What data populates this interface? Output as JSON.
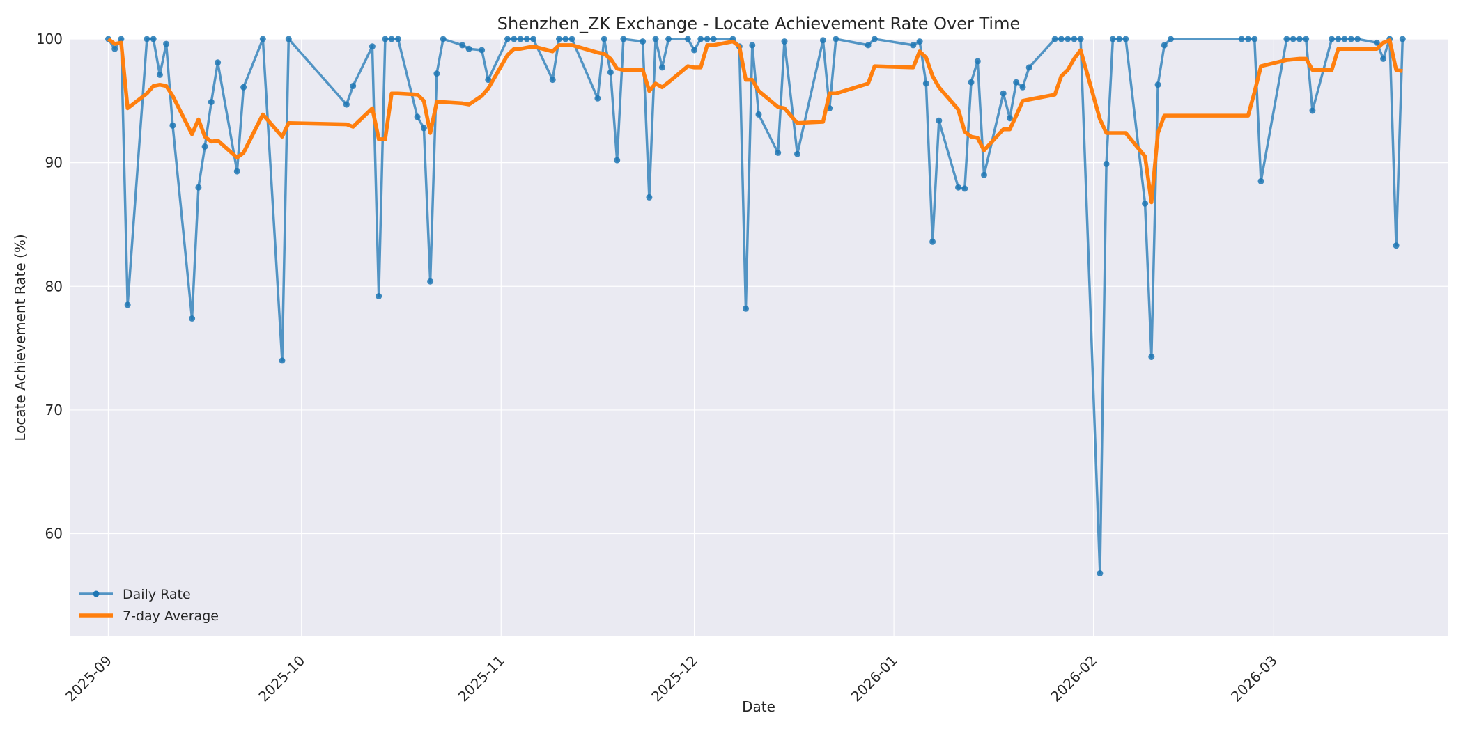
{
  "chart_data": {
    "type": "line",
    "title": "Shenzhen_ZK Exchange - Locate Achievement Rate Over Time",
    "xlabel": "Date",
    "ylabel": "Locate Achievement Rate (%)",
    "xlim": [
      "2025-08-26",
      "2026-03-28"
    ],
    "ylim": [
      51.7,
      100
    ],
    "xticks": [
      "2025-09-01",
      "2025-10-01",
      "2025-11-01",
      "2025-12-01",
      "2026-01-01",
      "2026-02-01",
      "2026-03-01"
    ],
    "xtick_labels": [
      "2025-09",
      "2025-10",
      "2025-11",
      "2025-12",
      "2026-01",
      "2026-02",
      "2026-03"
    ],
    "yticks": [
      60,
      70,
      80,
      90,
      100
    ],
    "ytick_labels": [
      "60",
      "70",
      "80",
      "90",
      "100"
    ],
    "grid": true,
    "legend_position": "lower-left",
    "series": [
      {
        "name": "Daily Rate",
        "color": "#1f77b4",
        "marker": "circle",
        "points": [
          [
            "2025-09-01",
            100
          ],
          [
            "2025-09-02",
            99.2
          ],
          [
            "2025-09-03",
            100
          ],
          [
            "2025-09-04",
            78.5
          ],
          [
            "2025-09-07",
            100
          ],
          [
            "2025-09-08",
            100
          ],
          [
            "2025-09-09",
            97.1
          ],
          [
            "2025-09-10",
            99.6
          ],
          [
            "2025-09-11",
            93
          ],
          [
            "2025-09-14",
            77.4
          ],
          [
            "2025-09-15",
            88
          ],
          [
            "2025-09-16",
            91.3
          ],
          [
            "2025-09-17",
            94.9
          ],
          [
            "2025-09-18",
            98.1
          ],
          [
            "2025-09-21",
            89.3
          ],
          [
            "2025-09-22",
            96.1
          ],
          [
            "2025-09-25",
            100
          ],
          [
            "2025-09-28",
            74
          ],
          [
            "2025-09-29",
            100
          ],
          [
            "2025-10-08",
            94.7
          ],
          [
            "2025-10-09",
            96.2
          ],
          [
            "2025-10-12",
            99.4
          ],
          [
            "2025-10-13",
            79.2
          ],
          [
            "2025-10-14",
            100
          ],
          [
            "2025-10-15",
            100
          ],
          [
            "2025-10-16",
            100
          ],
          [
            "2025-10-19",
            93.7
          ],
          [
            "2025-10-20",
            92.8
          ],
          [
            "2025-10-21",
            80.4
          ],
          [
            "2025-10-22",
            97.2
          ],
          [
            "2025-10-23",
            100
          ],
          [
            "2025-10-26",
            99.5
          ],
          [
            "2025-10-27",
            99.2
          ],
          [
            "2025-10-29",
            99.1
          ],
          [
            "2025-10-30",
            96.7
          ],
          [
            "2025-11-02",
            100
          ],
          [
            "2025-11-03",
            100
          ],
          [
            "2025-11-04",
            100
          ],
          [
            "2025-11-05",
            100
          ],
          [
            "2025-11-06",
            100
          ],
          [
            "2025-11-09",
            96.7
          ],
          [
            "2025-11-10",
            100
          ],
          [
            "2025-11-11",
            100
          ],
          [
            "2025-11-12",
            100
          ],
          [
            "2025-11-16",
            95.2
          ],
          [
            "2025-11-17",
            100
          ],
          [
            "2025-11-18",
            97.3
          ],
          [
            "2025-11-19",
            90.2
          ],
          [
            "2025-11-20",
            100
          ],
          [
            "2025-11-23",
            99.8
          ],
          [
            "2025-11-24",
            87.2
          ],
          [
            "2025-11-25",
            100
          ],
          [
            "2025-11-26",
            97.7
          ],
          [
            "2025-11-27",
            100
          ],
          [
            "2025-11-30",
            100
          ],
          [
            "2025-12-01",
            99.1
          ],
          [
            "2025-12-02",
            100
          ],
          [
            "2025-12-03",
            100
          ],
          [
            "2025-12-04",
            100
          ],
          [
            "2025-12-07",
            100
          ],
          [
            "2025-12-08",
            99.4
          ],
          [
            "2025-12-09",
            78.2
          ],
          [
            "2025-12-10",
            99.5
          ],
          [
            "2025-12-11",
            93.9
          ],
          [
            "2025-12-14",
            90.8
          ],
          [
            "2025-12-15",
            99.8
          ],
          [
            "2025-12-17",
            90.7
          ],
          [
            "2025-12-21",
            99.9
          ],
          [
            "2025-12-22",
            94.4
          ],
          [
            "2025-12-23",
            100
          ],
          [
            "2025-12-28",
            99.5
          ],
          [
            "2025-12-29",
            100
          ],
          [
            "2026-01-04",
            99.5
          ],
          [
            "2026-01-05",
            99.8
          ],
          [
            "2026-01-06",
            96.4
          ],
          [
            "2026-01-07",
            83.6
          ],
          [
            "2026-01-08",
            93.4
          ],
          [
            "2026-01-11",
            88
          ],
          [
            "2026-01-12",
            87.9
          ],
          [
            "2026-01-13",
            96.5
          ],
          [
            "2026-01-14",
            98.2
          ],
          [
            "2026-01-15",
            89
          ],
          [
            "2026-01-18",
            95.6
          ],
          [
            "2026-01-19",
            93.6
          ],
          [
            "2026-01-20",
            96.5
          ],
          [
            "2026-01-21",
            96.1
          ],
          [
            "2026-01-22",
            97.7
          ],
          [
            "2026-01-26",
            100
          ],
          [
            "2026-01-27",
            100
          ],
          [
            "2026-01-28",
            100
          ],
          [
            "2026-01-29",
            100
          ],
          [
            "2026-01-30",
            100
          ],
          [
            "2026-02-02",
            56.8
          ],
          [
            "2026-02-03",
            89.9
          ],
          [
            "2026-02-04",
            100
          ],
          [
            "2026-02-05",
            100
          ],
          [
            "2026-02-06",
            100
          ],
          [
            "2026-02-09",
            86.7
          ],
          [
            "2026-02-10",
            74.3
          ],
          [
            "2026-02-11",
            96.3
          ],
          [
            "2026-02-12",
            99.5
          ],
          [
            "2026-02-13",
            100
          ],
          [
            "2026-02-24",
            100
          ],
          [
            "2026-02-25",
            100
          ],
          [
            "2026-02-26",
            100
          ],
          [
            "2026-02-27",
            88.5
          ],
          [
            "2026-03-03",
            100
          ],
          [
            "2026-03-04",
            100
          ],
          [
            "2026-03-05",
            100
          ],
          [
            "2026-03-06",
            100
          ],
          [
            "2026-03-07",
            94.2
          ],
          [
            "2026-03-10",
            100
          ],
          [
            "2026-03-11",
            100
          ],
          [
            "2026-03-12",
            100
          ],
          [
            "2026-03-13",
            100
          ],
          [
            "2026-03-14",
            100
          ],
          [
            "2026-03-17",
            99.7
          ],
          [
            "2026-03-18",
            98.4
          ],
          [
            "2026-03-19",
            100
          ],
          [
            "2026-03-20",
            83.3
          ],
          [
            "2026-03-21",
            100
          ]
        ]
      },
      {
        "name": "7-day Average",
        "color": "#ff7f0e",
        "marker": "none",
        "points": [
          [
            "2025-09-01",
            100
          ],
          [
            "2025-09-02",
            99.6
          ],
          [
            "2025-09-03",
            99.7
          ],
          [
            "2025-09-04",
            94.4
          ],
          [
            "2025-09-07",
            95.6
          ],
          [
            "2025-09-08",
            96.2
          ],
          [
            "2025-09-09",
            96.3
          ],
          [
            "2025-09-10",
            96.2
          ],
          [
            "2025-09-11",
            95.4
          ],
          [
            "2025-09-14",
            92.3
          ],
          [
            "2025-09-15",
            93.5
          ],
          [
            "2025-09-16",
            92.1
          ],
          [
            "2025-09-17",
            91.7
          ],
          [
            "2025-09-18",
            91.8
          ],
          [
            "2025-09-21",
            90.4
          ],
          [
            "2025-09-22",
            90.8
          ],
          [
            "2025-09-25",
            93.9
          ],
          [
            "2025-09-28",
            92.1
          ],
          [
            "2025-09-29",
            93.2
          ],
          [
            "2025-10-08",
            93.1
          ],
          [
            "2025-10-09",
            92.9
          ],
          [
            "2025-10-12",
            94.4
          ],
          [
            "2025-10-13",
            91.9
          ],
          [
            "2025-10-14",
            91.9
          ],
          [
            "2025-10-15",
            95.6
          ],
          [
            "2025-10-16",
            95.6
          ],
          [
            "2025-10-19",
            95.5
          ],
          [
            "2025-10-20",
            95
          ],
          [
            "2025-10-21",
            92.4
          ],
          [
            "2025-10-22",
            94.9
          ],
          [
            "2025-10-23",
            94.9
          ],
          [
            "2025-10-26",
            94.8
          ],
          [
            "2025-10-27",
            94.7
          ],
          [
            "2025-10-29",
            95.4
          ],
          [
            "2025-10-30",
            96
          ],
          [
            "2025-11-02",
            98.7
          ],
          [
            "2025-11-03",
            99.2
          ],
          [
            "2025-11-04",
            99.2
          ],
          [
            "2025-11-06",
            99.4
          ],
          [
            "2025-11-09",
            99
          ],
          [
            "2025-11-10",
            99.5
          ],
          [
            "2025-11-12",
            99.5
          ],
          [
            "2025-11-16",
            98.9
          ],
          [
            "2025-11-17",
            98.8
          ],
          [
            "2025-11-18",
            98.4
          ],
          [
            "2025-11-19",
            97.6
          ],
          [
            "2025-11-20",
            97.5
          ],
          [
            "2025-11-23",
            97.5
          ],
          [
            "2025-11-24",
            95.8
          ],
          [
            "2025-11-25",
            96.4
          ],
          [
            "2025-11-26",
            96.1
          ],
          [
            "2025-11-27",
            96.5
          ],
          [
            "2025-11-30",
            97.8
          ],
          [
            "2025-12-01",
            97.7
          ],
          [
            "2025-12-02",
            97.7
          ],
          [
            "2025-12-03",
            99.5
          ],
          [
            "2025-12-04",
            99.5
          ],
          [
            "2025-12-07",
            99.8
          ],
          [
            "2025-12-08",
            99.4
          ],
          [
            "2025-12-09",
            96.7
          ],
          [
            "2025-12-10",
            96.7
          ],
          [
            "2025-12-11",
            95.8
          ],
          [
            "2025-12-14",
            94.5
          ],
          [
            "2025-12-15",
            94.4
          ],
          [
            "2025-12-17",
            93.2
          ],
          [
            "2025-12-21",
            93.3
          ],
          [
            "2025-12-22",
            95.6
          ],
          [
            "2025-12-23",
            95.6
          ],
          [
            "2025-12-28",
            96.4
          ],
          [
            "2025-12-29",
            97.8
          ],
          [
            "2026-01-04",
            97.7
          ],
          [
            "2026-01-05",
            99
          ],
          [
            "2026-01-06",
            98.5
          ],
          [
            "2026-01-07",
            97
          ],
          [
            "2026-01-08",
            96.1
          ],
          [
            "2026-01-11",
            94.3
          ],
          [
            "2026-01-12",
            92.5
          ],
          [
            "2026-01-13",
            92.1
          ],
          [
            "2026-01-14",
            92
          ],
          [
            "2026-01-15",
            91
          ],
          [
            "2026-01-18",
            92.7
          ],
          [
            "2026-01-19",
            92.7
          ],
          [
            "2026-01-20",
            93.8
          ],
          [
            "2026-01-21",
            95
          ],
          [
            "2026-01-22",
            95.1
          ],
          [
            "2026-01-26",
            95.5
          ],
          [
            "2026-01-27",
            97
          ],
          [
            "2026-01-28",
            97.5
          ],
          [
            "2026-01-29",
            98.4
          ],
          [
            "2026-01-30",
            99.1
          ],
          [
            "2026-02-02",
            93.5
          ],
          [
            "2026-02-03",
            92.4
          ],
          [
            "2026-02-06",
            92.4
          ],
          [
            "2026-02-09",
            90.5
          ],
          [
            "2026-02-10",
            86.8
          ],
          [
            "2026-02-11",
            92.4
          ],
          [
            "2026-02-12",
            93.8
          ],
          [
            "2026-02-13",
            93.8
          ],
          [
            "2026-02-24",
            93.8
          ],
          [
            "2026-02-25",
            93.8
          ],
          [
            "2026-02-26",
            95.7
          ],
          [
            "2026-02-27",
            97.8
          ],
          [
            "2026-03-03",
            98.3
          ],
          [
            "2026-03-05",
            98.4
          ],
          [
            "2026-03-06",
            98.4
          ],
          [
            "2026-03-07",
            97.5
          ],
          [
            "2026-03-10",
            97.5
          ],
          [
            "2026-03-11",
            99.2
          ],
          [
            "2026-03-14",
            99.2
          ],
          [
            "2026-03-17",
            99.2
          ],
          [
            "2026-03-18",
            99.7
          ],
          [
            "2026-03-19",
            99.9
          ],
          [
            "2026-03-20",
            97.5
          ],
          [
            "2026-03-21",
            97.4
          ]
        ]
      }
    ]
  }
}
